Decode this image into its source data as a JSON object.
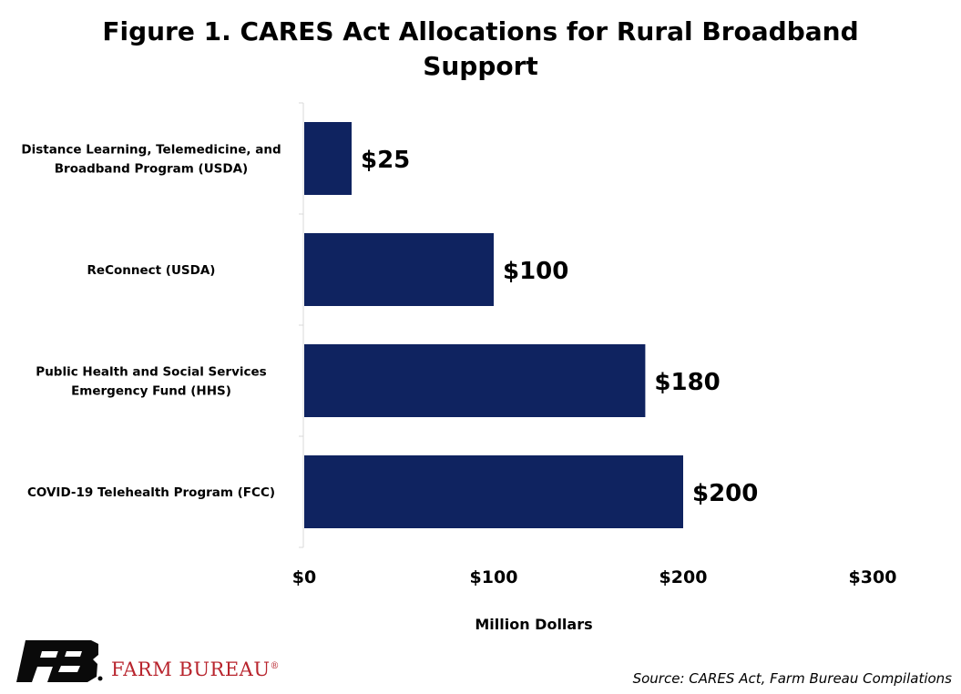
{
  "chart_data": {
    "type": "bar",
    "orientation": "horizontal",
    "title_line1": "Figure 1. CARES Act Allocations for Rural Broadband",
    "title_line2": "Support",
    "xlabel": "Million Dollars",
    "ylabel": "",
    "xlim": [
      0,
      300
    ],
    "xticks": [
      "$0",
      "$100",
      "$200",
      "$300"
    ],
    "categories": [
      [
        "Distance Learning, Telemedicine, and",
        "Broadband Program (USDA)"
      ],
      [
        "ReConnect (USDA)"
      ],
      [
        "Public Health and Social Services",
        "Emergency Fund (HHS)"
      ],
      [
        "COVID-19 Telehealth Program (FCC)"
      ]
    ],
    "values": [
      25,
      100,
      180,
      200
    ],
    "data_labels": [
      "$25",
      "$100",
      "$180",
      "$200"
    ],
    "bar_color": "#0f2360",
    "grid": false,
    "legend": "none"
  },
  "source": "Source: CARES Act, Farm Bureau Compilations",
  "brand": {
    "name": "FARM BUREAU",
    "mark": "®",
    "logo_color": "#b8242d",
    "logo_icon": "farm-bureau-fb-logo"
  }
}
